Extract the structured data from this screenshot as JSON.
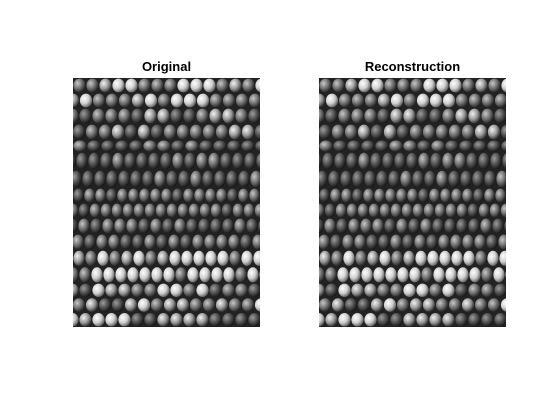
{
  "figure": {
    "background": "#ffffff",
    "axes": [
      {
        "title": "Original",
        "content": "grayscale corn kernels image"
      },
      {
        "title": "Reconstruction",
        "content": "grayscale corn kernels image (reconstructed)"
      }
    ]
  },
  "style": {
    "title_color": "#000000",
    "image_colormap": "gray"
  }
}
